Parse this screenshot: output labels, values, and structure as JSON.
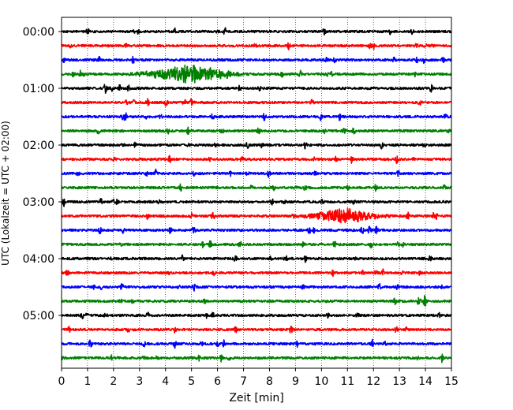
{
  "chart_data": {
    "type": "line",
    "title": "",
    "xlabel": "Zeit  [min]",
    "ylabel": "UTC (Lokalzeit = UTC + 02:00)",
    "xlim": [
      0,
      15
    ],
    "x_ticks": [
      "0",
      "1",
      "2",
      "3",
      "4",
      "5",
      "6",
      "7",
      "8",
      "9",
      "10",
      "11",
      "12",
      "13",
      "14",
      "15"
    ],
    "y_ticks": [
      "00:00",
      "01:00",
      "02:00",
      "03:00",
      "04:00",
      "05:00"
    ],
    "grid": "vertical-dotted",
    "trace_minutes_per_line": 15,
    "trace_colors": [
      "#000000",
      "#ff0000",
      "#0000ff",
      "#008000"
    ],
    "traces": [
      {
        "start": "00:00",
        "color": "#000000"
      },
      {
        "start": "00:15",
        "color": "#ff0000"
      },
      {
        "start": "00:30",
        "color": "#0000ff"
      },
      {
        "start": "00:45",
        "color": "#008000",
        "event": {
          "start_min": 2.2,
          "peak_min": 5.0,
          "end_min": 7.5,
          "peak_amplitude": 1.0
        }
      },
      {
        "start": "01:00",
        "color": "#000000"
      },
      {
        "start": "01:15",
        "color": "#ff0000"
      },
      {
        "start": "01:30",
        "color": "#0000ff"
      },
      {
        "start": "01:45",
        "color": "#008000"
      },
      {
        "start": "02:00",
        "color": "#000000"
      },
      {
        "start": "02:15",
        "color": "#ff0000"
      },
      {
        "start": "02:30",
        "color": "#0000ff"
      },
      {
        "start": "02:45",
        "color": "#008000"
      },
      {
        "start": "03:00",
        "color": "#000000"
      },
      {
        "start": "03:15",
        "color": "#ff0000",
        "event": {
          "start_min": 8.8,
          "peak_min": 10.8,
          "end_min": 13.0,
          "peak_amplitude": 0.8
        }
      },
      {
        "start": "03:30",
        "color": "#0000ff"
      },
      {
        "start": "03:45",
        "color": "#008000"
      },
      {
        "start": "04:00",
        "color": "#000000"
      },
      {
        "start": "04:15",
        "color": "#ff0000"
      },
      {
        "start": "04:30",
        "color": "#0000ff"
      },
      {
        "start": "04:45",
        "color": "#008000"
      },
      {
        "start": "05:00",
        "color": "#000000"
      },
      {
        "start": "05:15",
        "color": "#ff0000"
      },
      {
        "start": "05:30",
        "color": "#0000ff"
      },
      {
        "start": "05:45",
        "color": "#008000"
      }
    ]
  }
}
